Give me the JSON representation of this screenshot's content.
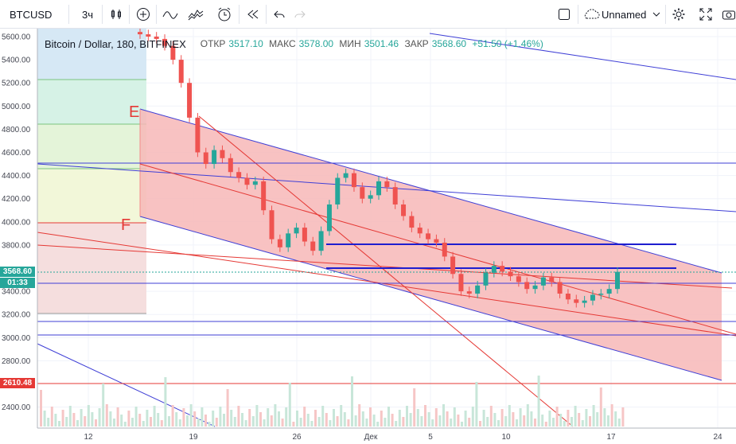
{
  "toolbar": {
    "symbol": "BTCUSD",
    "interval": "3ч",
    "icons": [
      "candles-icon",
      "add-indicator-icon",
      "compare-icon",
      "indicators-icon",
      "alert-icon",
      "replay-icon",
      "undo-icon",
      "redo-icon"
    ],
    "layout_name": "Unnamed"
  },
  "legend": {
    "title": "Bitcoin / Dollar, 180, BITFINEX",
    "open_label": "ОТКР",
    "open": "3517.10",
    "high_label": "МАКС",
    "high": "3578.00",
    "low_label": "МИН",
    "low": "3501.46",
    "close_label": "ЗАКР",
    "close": "3568.60",
    "change": "+51.50 (+1.46%)"
  },
  "price_tags": {
    "last_price": "3568.60",
    "countdown": "01:33",
    "level": "2610.48"
  },
  "waves": {
    "e": "E",
    "f": "F"
  },
  "colors": {
    "up": "#26a69a",
    "down": "#ef5350",
    "channel": "#f7b7b7",
    "channel_line": "#3f3fd6",
    "red_line": "#e53935"
  },
  "chart_data": {
    "type": "candlestick",
    "y_ticks": [
      "5600.00",
      "5400.00",
      "5200.00",
      "5000.00",
      "4800.00",
      "4600.00",
      "4400.00",
      "4200.00",
      "4000.00",
      "3800.00",
      "3400.00",
      "3200.00",
      "3000.00",
      "2800.00",
      "2400.00"
    ],
    "x_ticks": [
      "12",
      "19",
      "26",
      "Дек",
      "5",
      "10",
      "17",
      "24"
    ],
    "ylim": [
      2300,
      5700
    ],
    "horizontal_levels": [
      4510,
      3810,
      3600,
      3460,
      3140,
      3030,
      2610.48
    ],
    "candles_close": [
      5620,
      5600,
      5580,
      5520,
      5400,
      5200,
      4900,
      4600,
      4500,
      4620,
      4550,
      4430,
      4380,
      4320,
      4350,
      4100,
      3850,
      3780,
      3900,
      3950,
      3830,
      3750,
      3920,
      4150,
      4380,
      4420,
      4300,
      4200,
      4230,
      4350,
      4300,
      4150,
      4050,
      3950,
      3900,
      3850,
      3820,
      3700,
      3550,
      3400,
      3380,
      3450,
      3560,
      3620,
      3570,
      3530,
      3480,
      3420,
      3450,
      3520,
      3480,
      3380,
      3330,
      3300,
      3320,
      3370,
      3380,
      3420,
      3568
    ]
  }
}
